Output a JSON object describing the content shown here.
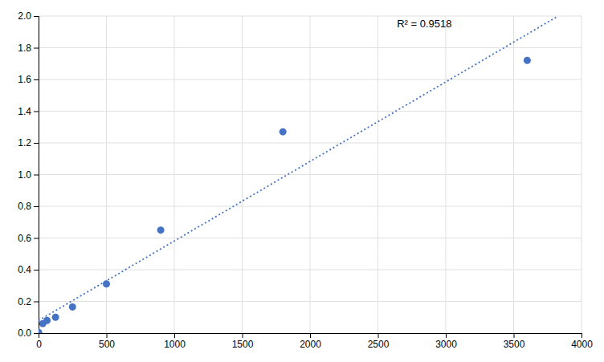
{
  "chart_data": {
    "type": "scatter",
    "series": [
      {
        "type": "scatter",
        "color": "#4472c4",
        "x": [
          0,
          31.25,
          62.5,
          125,
          250,
          500,
          900,
          1800,
          3600
        ],
        "values": [
          0.005,
          0.06,
          0.08,
          0.1,
          0.165,
          0.31,
          0.65,
          1.27,
          1.72
        ]
      },
      {
        "type": "line",
        "line_style": "dotted",
        "color": "#4472c4",
        "x": [
          0,
          3827.65
        ],
        "values": [
          0.07914,
          2.0
        ]
      }
    ],
    "annotations": [
      "R² = 0.9518"
    ],
    "xlim": [
      0,
      4000
    ],
    "ylim": [
      0,
      2.0
    ],
    "xticks": [
      0,
      500,
      1000,
      1500,
      2000,
      2500,
      3000,
      3500,
      4000
    ],
    "yticks": [
      {
        "value": 0,
        "label": "0.0"
      },
      0.2,
      0.4,
      0.6,
      0.8,
      {
        "value": 1.0,
        "label": "1.0"
      },
      1.2,
      1.4,
      1.6,
      1.8,
      {
        "value": 2.0,
        "label": "2.0"
      }
    ],
    "grid": true
  }
}
